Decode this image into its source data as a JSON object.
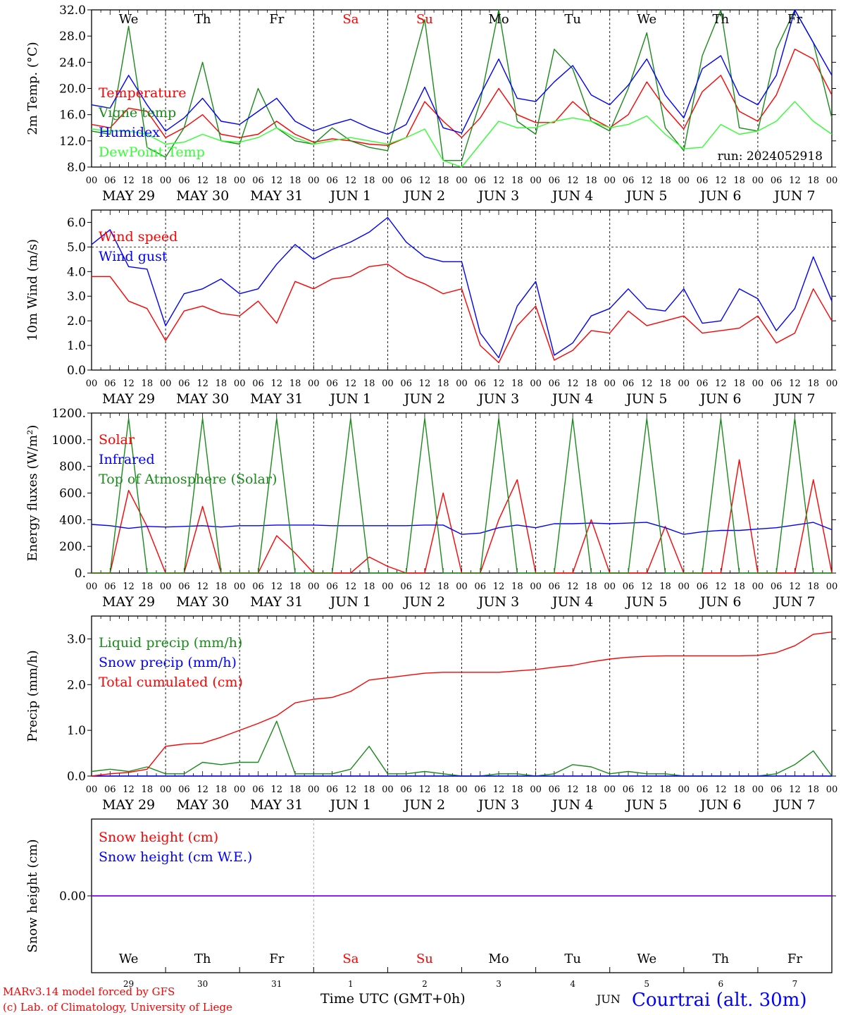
{
  "colors": {
    "red": "#ff0000",
    "green": "#1a8a1a",
    "blue": "#0000ff",
    "lightgreen": "#33ff33",
    "purple": "#7f00ff",
    "axis": "#000000"
  },
  "days": {
    "dates": [
      "MAY 29",
      "MAY 30",
      "MAY 31",
      "JUN  1",
      "JUN  2",
      "JUN  3",
      "JUN  4",
      "JUN  5",
      "JUN  6",
      "JUN  7"
    ],
    "weekdays": [
      "We",
      "Th",
      "Fr",
      "Sa",
      "Su",
      "Mo",
      "Tu",
      "We",
      "Th",
      "Fr"
    ],
    "weekday_colors": [
      "black",
      "black",
      "black",
      "red",
      "red",
      "black",
      "black",
      "black",
      "black",
      "black"
    ],
    "day_numbers": [
      "29",
      "30",
      "31",
      "1",
      "2",
      "3",
      "4",
      "5",
      "6",
      "7"
    ],
    "hour_ticks": [
      "00",
      "06",
      "12",
      "18"
    ],
    "last_hour": "00"
  },
  "chart_data": [
    {
      "type": "line",
      "ylabel": "2m Temp. (°C)",
      "ylim": [
        8,
        32
      ],
      "yticks": [
        "8.0",
        "12.0",
        "16.0",
        "20.0",
        "24.0",
        "28.0",
        "32.0"
      ],
      "x_hours": [
        0,
        6,
        12,
        18,
        24,
        30,
        36,
        42,
        48,
        54,
        60,
        66,
        72,
        78,
        84,
        90,
        96,
        102,
        108,
        114,
        120,
        126,
        132,
        138,
        144,
        150,
        156,
        162,
        168,
        174,
        180,
        186,
        192,
        198,
        204,
        210,
        216,
        222,
        228,
        234,
        240
      ],
      "annotation": "run: 2024052918",
      "series": [
        {
          "name": "Temperature",
          "color": "#ff0000",
          "values": [
            14.5,
            14.0,
            17.0,
            16.5,
            12.5,
            14.0,
            16.0,
            13.0,
            12.5,
            13.0,
            15.0,
            13.0,
            11.8,
            12.3,
            12.0,
            11.5,
            11.3,
            12.5,
            18.0,
            15.0,
            12.5,
            15.5,
            20.0,
            16.0,
            14.8,
            14.8,
            18.0,
            15.5,
            14.0,
            16.0,
            21.0,
            17.0,
            13.8,
            19.5,
            22.0,
            16.5,
            15.0,
            19.0,
            26.0,
            24.5,
            19.0
          ]
        },
        {
          "name": "Vigne temp",
          "color": "#1a8a1a",
          "values": [
            13.5,
            13.0,
            29.5,
            11.0,
            9.5,
            14.0,
            24.0,
            12.0,
            11.5,
            20.0,
            14.0,
            12.0,
            11.5,
            14.0,
            12.0,
            11.0,
            10.5,
            20.0,
            30.5,
            9.0,
            9.0,
            18.0,
            33.0,
            15.0,
            13.0,
            26.0,
            23.0,
            15.0,
            13.5,
            20.0,
            28.5,
            14.0,
            10.5,
            25.0,
            33.0,
            14.0,
            13.5,
            26.0,
            34.0,
            27.0,
            15.5
          ]
        },
        {
          "name": "Humidex",
          "color": "#0000ff",
          "values": [
            17.5,
            17.0,
            22.0,
            17.5,
            13.5,
            15.5,
            18.5,
            15.0,
            14.5,
            16.5,
            18.5,
            15.0,
            13.5,
            14.5,
            15.3,
            14.0,
            13.0,
            14.5,
            20.2,
            14.0,
            13.2,
            19.0,
            24.5,
            18.5,
            18.0,
            21.0,
            23.5,
            19.0,
            17.5,
            20.5,
            24.5,
            19.0,
            15.5,
            23.0,
            25.0,
            19.0,
            17.5,
            22.0,
            32.0,
            27.0,
            22.0
          ]
        },
        {
          "name": "DewPoint Temp",
          "color": "#33ff33",
          "values": [
            13.8,
            13.5,
            13.5,
            13.0,
            11.5,
            11.8,
            13.0,
            12.0,
            11.8,
            12.5,
            14.0,
            12.5,
            11.5,
            12.0,
            12.5,
            12.0,
            11.5,
            12.5,
            13.8,
            9.0,
            8.0,
            11.5,
            15.0,
            14.0,
            14.0,
            15.0,
            15.5,
            15.0,
            14.0,
            14.5,
            15.8,
            13.0,
            10.8,
            11.0,
            14.5,
            13.0,
            13.5,
            15.0,
            18.0,
            15.0,
            13.0
          ]
        }
      ]
    },
    {
      "type": "line",
      "ylabel": "10m Wind (m/s)",
      "ylim": [
        0,
        6.5
      ],
      "yticks": [
        "0.0",
        "1.0",
        "2.0",
        "3.0",
        "4.0",
        "5.0",
        "6.0"
      ],
      "x_hours": [
        0,
        6,
        12,
        18,
        24,
        30,
        36,
        42,
        48,
        54,
        60,
        66,
        72,
        78,
        84,
        90,
        96,
        102,
        108,
        114,
        120,
        126,
        132,
        138,
        144,
        150,
        156,
        162,
        168,
        174,
        180,
        186,
        192,
        198,
        204,
        210,
        216,
        222,
        228,
        234,
        240
      ],
      "series": [
        {
          "name": "Wind speed",
          "color": "#ff0000",
          "values": [
            3.8,
            3.8,
            2.8,
            2.5,
            1.2,
            2.4,
            2.6,
            2.3,
            2.2,
            2.8,
            1.9,
            3.6,
            3.3,
            3.7,
            3.8,
            4.2,
            4.3,
            3.8,
            3.5,
            3.1,
            3.3,
            1.0,
            0.3,
            1.8,
            2.6,
            0.4,
            0.8,
            1.6,
            1.5,
            2.4,
            1.8,
            2.0,
            2.2,
            1.5,
            1.6,
            1.7,
            2.2,
            1.1,
            1.5,
            3.3,
            2.0
          ]
        },
        {
          "name": "Wind gust",
          "color": "#0000ff",
          "values": [
            5.1,
            5.7,
            4.2,
            4.1,
            1.8,
            3.1,
            3.3,
            3.7,
            3.1,
            3.3,
            4.3,
            5.1,
            4.5,
            4.9,
            5.2,
            5.6,
            6.2,
            5.2,
            4.6,
            4.4,
            4.4,
            1.5,
            0.5,
            2.6,
            3.6,
            0.6,
            1.1,
            2.2,
            2.5,
            3.3,
            2.5,
            2.4,
            3.3,
            1.9,
            2.0,
            3.3,
            2.9,
            1.6,
            2.5,
            4.6,
            2.8
          ]
        }
      ]
    },
    {
      "type": "line",
      "ylabel": "Energy fluxes (W/m²)",
      "ylim": [
        0,
        1200
      ],
      "yticks": [
        "0.",
        "200.",
        "400.",
        "600.",
        "800.",
        "1000.",
        "1200."
      ],
      "x_hours": [
        0,
        6,
        12,
        18,
        24,
        30,
        36,
        42,
        48,
        54,
        60,
        66,
        72,
        78,
        84,
        90,
        96,
        102,
        108,
        114,
        120,
        126,
        132,
        138,
        144,
        150,
        156,
        162,
        168,
        174,
        180,
        186,
        192,
        198,
        204,
        210,
        216,
        222,
        228,
        234,
        240
      ],
      "series": [
        {
          "name": "Solar",
          "color": "#ff0000",
          "values": [
            0,
            0,
            620,
            350,
            0,
            0,
            500,
            0,
            0,
            0,
            280,
            150,
            0,
            0,
            0,
            120,
            50,
            0,
            0,
            600,
            0,
            0,
            400,
            700,
            0,
            0,
            0,
            400,
            0,
            0,
            0,
            350,
            0,
            0,
            0,
            850,
            0,
            0,
            0,
            700,
            0
          ]
        },
        {
          "name": "Infrared",
          "color": "#0000ff",
          "values": [
            365,
            355,
            335,
            350,
            345,
            350,
            355,
            345,
            355,
            355,
            360,
            360,
            360,
            355,
            355,
            355,
            355,
            355,
            360,
            360,
            290,
            300,
            340,
            360,
            340,
            370,
            370,
            375,
            370,
            375,
            380,
            340,
            290,
            310,
            320,
            320,
            330,
            340,
            360,
            380,
            325
          ]
        },
        {
          "name": "Top of Atmosphere (Solar)",
          "color": "#1a8a1a",
          "values": [
            0,
            0,
            1160,
            0,
            0,
            0,
            1160,
            0,
            0,
            0,
            1160,
            0,
            0,
            0,
            1160,
            0,
            0,
            0,
            1160,
            0,
            0,
            0,
            1160,
            0,
            0,
            0,
            1160,
            0,
            0,
            0,
            1160,
            0,
            0,
            0,
            1160,
            0,
            0,
            0,
            1160,
            0,
            0
          ]
        }
      ]
    },
    {
      "type": "line",
      "ylabel": "Precip (mm/h)",
      "ylim": [
        0,
        3.5
      ],
      "yticks": [
        "0.0",
        "1.0",
        "2.0",
        "3.0"
      ],
      "x_hours": [
        0,
        6,
        12,
        18,
        24,
        30,
        36,
        42,
        48,
        54,
        60,
        66,
        72,
        78,
        84,
        90,
        96,
        102,
        108,
        114,
        120,
        126,
        132,
        138,
        144,
        150,
        156,
        162,
        168,
        174,
        180,
        186,
        192,
        198,
        204,
        210,
        216,
        222,
        228,
        234,
        240
      ],
      "series": [
        {
          "name": "Liquid precip (mm/h)",
          "color": "#1a8a1a",
          "values": [
            0.1,
            0.15,
            0.1,
            0.2,
            0.05,
            0.05,
            0.3,
            0.25,
            0.3,
            0.3,
            1.2,
            0.05,
            0.05,
            0.05,
            0.15,
            0.65,
            0.05,
            0.05,
            0.1,
            0.05,
            0.0,
            0.0,
            0.05,
            0.05,
            0.0,
            0.05,
            0.25,
            0.2,
            0.05,
            0.1,
            0.05,
            0.05,
            0.0,
            0.0,
            0.0,
            0.0,
            0.0,
            0.05,
            0.25,
            0.55,
            0.0
          ]
        },
        {
          "name": "Snow precip (mm/h)",
          "color": "#0000ff",
          "values": [
            0,
            0,
            0,
            0,
            0,
            0,
            0,
            0,
            0,
            0,
            0,
            0,
            0,
            0,
            0,
            0,
            0,
            0,
            0,
            0,
            0,
            0,
            0,
            0,
            0,
            0,
            0,
            0,
            0,
            0,
            0,
            0,
            0,
            0,
            0,
            0,
            0,
            0,
            0,
            0,
            0
          ]
        },
        {
          "name": "Total cumulated (cm)",
          "color": "#ff0000",
          "values": [
            0.0,
            0.05,
            0.08,
            0.15,
            0.65,
            0.7,
            0.72,
            0.85,
            1.0,
            1.15,
            1.32,
            1.6,
            1.68,
            1.72,
            1.85,
            2.1,
            2.15,
            2.2,
            2.25,
            2.27,
            2.27,
            2.27,
            2.27,
            2.3,
            2.33,
            2.38,
            2.42,
            2.5,
            2.56,
            2.6,
            2.62,
            2.63,
            2.63,
            2.63,
            2.63,
            2.63,
            2.64,
            2.7,
            2.85,
            3.1,
            3.15
          ]
        }
      ]
    },
    {
      "type": "line",
      "ylabel": "Snow height (cm)",
      "ylim": [
        -1,
        1
      ],
      "yticks": [
        "0.00"
      ],
      "x_hours": [
        0,
        240
      ],
      "series": [
        {
          "name": "Snow height (cm)",
          "color": "#ff0000",
          "values": [
            0,
            0
          ]
        },
        {
          "name": "Snow height (cm W.E.)",
          "color": "#0000ff",
          "values": [
            0,
            0
          ]
        }
      ]
    }
  ],
  "footer": {
    "credit_line1": "MARv3.14 model forced by GFS",
    "credit_line2": "(c) Lab. of Climatology, University of Liege",
    "xaxis_title": "Time UTC (GMT+0h)",
    "month": "JUN",
    "location": "Courtrai (alt. 30m)"
  }
}
